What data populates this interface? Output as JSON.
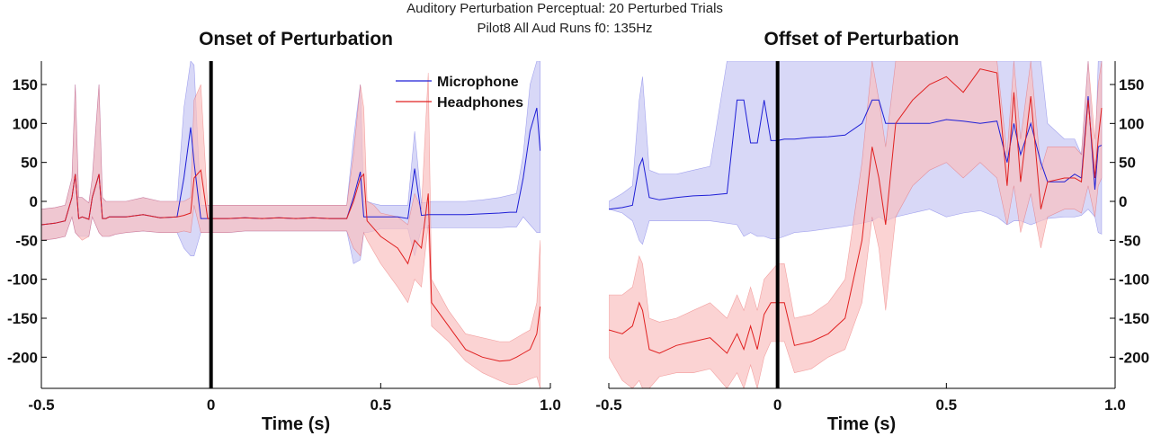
{
  "figure": {
    "suptitle_line1": "Auditory Perturbation Perceptual: 20 Perturbed Trials",
    "suptitle_line2": "Pilot8 All Aud Runs   f0: 135Hz"
  },
  "colors": {
    "microphone": "#1f1fd6",
    "headphones": "#e02020",
    "microphone_band": "#c8c8f4",
    "headphones_band": "#f9c0c0",
    "event_line": "#000000"
  },
  "chart_data": [
    {
      "type": "line",
      "title": "Onset of Perturbation",
      "xlabel": "Time (s)",
      "ylabel": "",
      "xlim": [
        -0.5,
        1.0
      ],
      "ylim": [
        -240,
        180
      ],
      "xticks": [
        -0.5,
        0,
        0.5,
        1.0
      ],
      "xtick_labels": [
        "-0.5",
        "0",
        "0.5",
        "1.0"
      ],
      "yticks": [
        150,
        100,
        50,
        0,
        -50,
        -100,
        -150,
        -200
      ],
      "ytick_labels": [
        "150",
        "100",
        "50",
        "0",
        "-50",
        "-100",
        "-150",
        "-200"
      ],
      "y_axis_side": "left",
      "event_line_x": 0,
      "legend": {
        "position": "top-right"
      },
      "x": [
        -0.5,
        -0.46,
        -0.43,
        -0.41,
        -0.4,
        -0.39,
        -0.38,
        -0.36,
        -0.35,
        -0.33,
        -0.32,
        -0.31,
        -0.3,
        -0.28,
        -0.25,
        -0.2,
        -0.15,
        -0.1,
        -0.08,
        -0.06,
        -0.05,
        -0.03,
        -0.01,
        0.0,
        0.05,
        0.1,
        0.15,
        0.2,
        0.25,
        0.3,
        0.35,
        0.4,
        0.42,
        0.44,
        0.45,
        0.46,
        0.48,
        0.5,
        0.55,
        0.58,
        0.6,
        0.62,
        0.64,
        0.65,
        0.7,
        0.75,
        0.8,
        0.85,
        0.88,
        0.9,
        0.92,
        0.94,
        0.96,
        0.97
      ],
      "series": [
        {
          "name": "Microphone",
          "values": [
            -30,
            -28,
            -25,
            5,
            35,
            -22,
            -20,
            -23,
            5,
            35,
            -22,
            -22,
            -20,
            -20,
            -20,
            -17,
            -21,
            -20,
            30,
            95,
            50,
            -22,
            -22,
            -22,
            -22,
            -21,
            -22,
            -21,
            -22,
            -21,
            -22,
            -22,
            5,
            38,
            -20,
            -20,
            -20,
            -20,
            -20,
            -22,
            42,
            -18,
            -17,
            -17,
            -17,
            -17,
            -16,
            -15,
            -14,
            -14,
            30,
            90,
            120,
            65
          ],
          "lower": [
            -50,
            -48,
            -45,
            -20,
            -40,
            -45,
            -45,
            -45,
            -20,
            -40,
            -45,
            -45,
            -45,
            -42,
            -40,
            -38,
            -40,
            -40,
            -60,
            -70,
            -70,
            -40,
            -40,
            -40,
            -40,
            -38,
            -38,
            -38,
            -38,
            -38,
            -38,
            -38,
            -80,
            -75,
            -40,
            -40,
            -38,
            -35,
            -35,
            -35,
            -70,
            -35,
            -34,
            -34,
            -34,
            -34,
            -34,
            -34,
            -33,
            -33,
            -20,
            -30,
            -40,
            -40
          ],
          "upper": [
            -10,
            -8,
            -5,
            30,
            150,
            5,
            5,
            -2,
            30,
            150,
            5,
            0,
            0,
            0,
            0,
            5,
            0,
            0,
            120,
            180,
            175,
            -5,
            -5,
            -5,
            -5,
            -5,
            -5,
            -5,
            -5,
            -5,
            -5,
            -5,
            80,
            150,
            0,
            0,
            -3,
            -5,
            -5,
            -5,
            90,
            -2,
            -1,
            0,
            0,
            0,
            2,
            5,
            8,
            10,
            60,
            150,
            180,
            180
          ]
        },
        {
          "name": "Headphones",
          "values": [
            -30,
            -28,
            -25,
            5,
            35,
            -22,
            -20,
            -23,
            5,
            35,
            -22,
            -22,
            -20,
            -20,
            -20,
            -17,
            -21,
            -20,
            -18,
            -15,
            30,
            40,
            -22,
            -22,
            -22,
            -21,
            -22,
            -21,
            -22,
            -21,
            -22,
            -22,
            0,
            30,
            35,
            -25,
            -35,
            -45,
            -60,
            -80,
            -50,
            -60,
            10,
            -130,
            -160,
            -190,
            -200,
            -205,
            -204,
            -200,
            -195,
            -190,
            -170,
            -135
          ],
          "lower": [
            -50,
            -48,
            -45,
            -20,
            -40,
            -45,
            -50,
            -45,
            -20,
            -40,
            -45,
            -45,
            -45,
            -42,
            -40,
            -38,
            -40,
            -40,
            -38,
            -40,
            -5,
            -40,
            -40,
            -40,
            -40,
            -38,
            -38,
            -38,
            -38,
            -38,
            -38,
            -38,
            -60,
            -70,
            -40,
            -50,
            -65,
            -80,
            -110,
            -130,
            -100,
            -110,
            -30,
            -160,
            -180,
            -205,
            -220,
            -230,
            -235,
            -235,
            -232,
            -228,
            -225,
            -240
          ],
          "upper": [
            -10,
            -8,
            -5,
            30,
            150,
            5,
            5,
            -2,
            30,
            150,
            5,
            0,
            0,
            0,
            0,
            5,
            0,
            0,
            0,
            5,
            130,
            150,
            -5,
            -5,
            -5,
            -5,
            -5,
            -5,
            -5,
            -5,
            -5,
            -5,
            60,
            150,
            120,
            0,
            -5,
            -15,
            -20,
            -30,
            10,
            -10,
            165,
            -100,
            -140,
            -170,
            -175,
            -180,
            -180,
            -175,
            -170,
            -165,
            -130,
            -50
          ]
        }
      ]
    },
    {
      "type": "line",
      "title": "Offset of Perturbation",
      "xlabel": "Time (s)",
      "ylabel": "",
      "xlim": [
        -0.5,
        1.0
      ],
      "ylim": [
        -240,
        180
      ],
      "xticks": [
        -0.5,
        0,
        0.5,
        1.0
      ],
      "xtick_labels": [
        "-0.5",
        "0",
        "0.5",
        "1.0"
      ],
      "yticks": [
        150,
        100,
        50,
        0,
        -50,
        -100,
        -150,
        -200
      ],
      "ytick_labels": [
        "150",
        "100",
        "50",
        "0",
        "-50",
        "-100",
        "-150",
        "-200"
      ],
      "y_axis_side": "right",
      "event_line_x": 0,
      "x": [
        -0.5,
        -0.46,
        -0.43,
        -0.41,
        -0.4,
        -0.38,
        -0.35,
        -0.3,
        -0.25,
        -0.2,
        -0.15,
        -0.12,
        -0.1,
        -0.08,
        -0.06,
        -0.04,
        -0.02,
        0.0,
        0.02,
        0.05,
        0.1,
        0.15,
        0.2,
        0.25,
        0.28,
        0.3,
        0.32,
        0.35,
        0.4,
        0.45,
        0.5,
        0.55,
        0.6,
        0.65,
        0.68,
        0.7,
        0.72,
        0.75,
        0.78,
        0.8,
        0.85,
        0.88,
        0.9,
        0.92,
        0.94,
        0.95,
        0.96
      ],
      "series": [
        {
          "name": "Microphone",
          "values": [
            -10,
            -8,
            -5,
            45,
            55,
            5,
            2,
            5,
            7,
            8,
            10,
            130,
            130,
            75,
            75,
            130,
            78,
            78,
            80,
            80,
            82,
            83,
            85,
            100,
            130,
            130,
            100,
            100,
            100,
            100,
            105,
            103,
            100,
            103,
            50,
            100,
            60,
            100,
            50,
            25,
            25,
            35,
            30,
            135,
            15,
            70,
            72
          ],
          "lower": [
            -10,
            -15,
            -25,
            -50,
            -55,
            -25,
            -25,
            -25,
            -25,
            -25,
            -28,
            -30,
            -45,
            -40,
            -45,
            -45,
            -48,
            -48,
            -45,
            -40,
            -38,
            -35,
            -32,
            -28,
            -25,
            -20,
            -25,
            -20,
            -15,
            -10,
            -20,
            -15,
            -12,
            -20,
            -30,
            -25,
            -25,
            -30,
            -25,
            -22,
            -20,
            -20,
            -18,
            -10,
            -20,
            -40,
            -42
          ],
          "upper": [
            0,
            10,
            20,
            130,
            160,
            40,
            35,
            35,
            40,
            45,
            180,
            180,
            180,
            180,
            180,
            180,
            180,
            180,
            180,
            180,
            180,
            180,
            180,
            180,
            180,
            180,
            180,
            180,
            180,
            180,
            180,
            180,
            180,
            180,
            180,
            180,
            180,
            180,
            180,
            100,
            80,
            80,
            60,
            180,
            40,
            180,
            180
          ]
        },
        {
          "name": "Headphones",
          "values": [
            -165,
            -170,
            -160,
            -130,
            -140,
            -190,
            -195,
            -185,
            -180,
            -175,
            -195,
            -170,
            -190,
            -160,
            -190,
            -145,
            -130,
            -130,
            -130,
            -185,
            -180,
            -170,
            -150,
            -50,
            70,
            30,
            -30,
            100,
            130,
            150,
            160,
            140,
            170,
            165,
            20,
            140,
            25,
            135,
            -10,
            25,
            30,
            30,
            25,
            130,
            30,
            80,
            120
          ],
          "lower": [
            -200,
            -230,
            -240,
            -230,
            -240,
            -240,
            -225,
            -220,
            -220,
            -215,
            -240,
            -220,
            -240,
            -210,
            -240,
            -200,
            -180,
            -180,
            -180,
            -220,
            -215,
            -200,
            -190,
            -130,
            -20,
            -60,
            -140,
            -20,
            20,
            40,
            50,
            30,
            50,
            30,
            -30,
            20,
            -40,
            10,
            -60,
            -20,
            -10,
            -10,
            -15,
            20,
            -20,
            20,
            30
          ],
          "upper": [
            -120,
            -120,
            -110,
            -70,
            -80,
            -150,
            -155,
            -150,
            -140,
            -130,
            -150,
            -120,
            -140,
            -110,
            -140,
            -100,
            -90,
            -80,
            -80,
            -150,
            -145,
            -130,
            -100,
            50,
            180,
            130,
            70,
            180,
            180,
            180,
            180,
            180,
            180,
            180,
            60,
            180,
            80,
            180,
            40,
            70,
            70,
            70,
            60,
            180,
            80,
            150,
            180
          ]
        }
      ]
    }
  ]
}
